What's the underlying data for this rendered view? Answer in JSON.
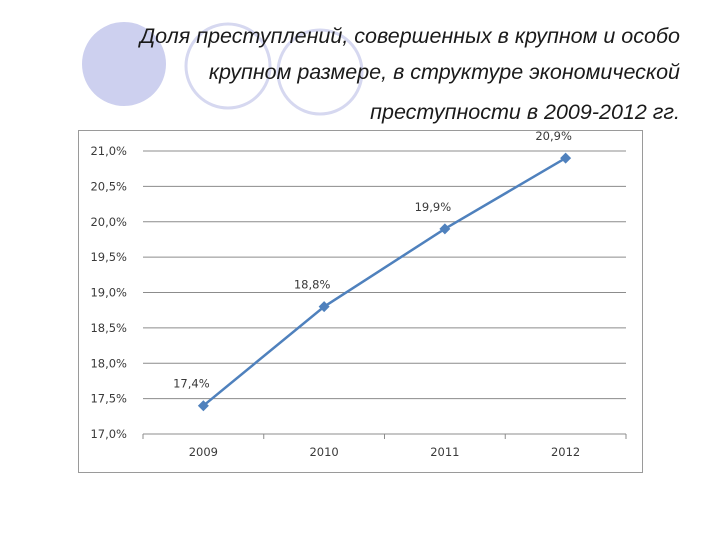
{
  "slide": {
    "title_lines": [
      "Доля преступлений, совершенных в крупном и особо",
      "крупном размере, в структуре экономической",
      "преступности в 2009-2012 гг."
    ]
  },
  "decor": {
    "circle_color": "#cdd0ef",
    "circle_outline": "#d6d8f0"
  },
  "chart_data": {
    "type": "line",
    "title": "",
    "xlabel": "",
    "ylabel": "",
    "categories": [
      "2009",
      "2010",
      "2011",
      "2012"
    ],
    "series": [
      {
        "values": [
          17.4,
          18.8,
          19.9,
          20.9
        ],
        "labels": [
          "17,4%",
          "18,8%",
          "19,9%",
          "20,9%"
        ],
        "color": "#4f81bd",
        "marker": "diamond"
      }
    ],
    "ylim": [
      17.0,
      21.0
    ],
    "yticks": [
      "17,0%",
      "17,5%",
      "18,0%",
      "18,5%",
      "19,0%",
      "19,5%",
      "20,0%",
      "20,5%",
      "21,0%"
    ],
    "ytick_values": [
      17.0,
      17.5,
      18.0,
      18.5,
      19.0,
      19.5,
      20.0,
      20.5,
      21.0
    ],
    "grid": true,
    "legend": "none",
    "gridline_color": "#8c8c8c"
  }
}
